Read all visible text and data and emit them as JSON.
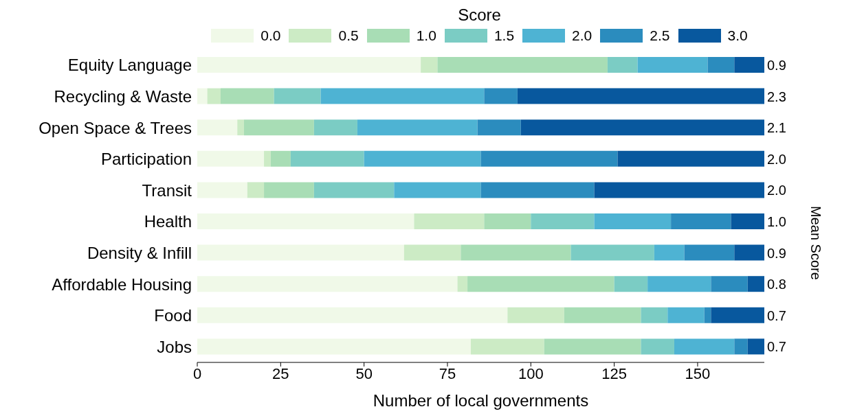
{
  "chart_data": {
    "type": "bar",
    "orientation": "horizontal",
    "stacked": true,
    "xlabel": "Number of local governments",
    "y2label": "Mean Score",
    "legend_title": "Score",
    "legend": "top",
    "categories": [
      "Equity Language",
      "Recycling & Waste",
      "Open Space & Trees",
      "Participation",
      "Transit",
      "Health",
      "Density & Infill",
      "Affordable Housing",
      "Food",
      "Jobs"
    ],
    "series": [
      {
        "name": "0.0",
        "color": "#f0f9e8",
        "values": [
          67,
          3,
          12,
          20,
          15,
          65,
          62,
          78,
          93,
          82
        ]
      },
      {
        "name": "0.5",
        "color": "#ccebc5",
        "values": [
          5,
          4,
          2,
          2,
          5,
          21,
          17,
          3,
          17,
          22
        ]
      },
      {
        "name": "1.0",
        "color": "#a8ddb5",
        "values": [
          51,
          16,
          21,
          6,
          15,
          14,
          33,
          44,
          23,
          29
        ]
      },
      {
        "name": "1.5",
        "color": "#7bccc4",
        "values": [
          9,
          14,
          13,
          22,
          24,
          19,
          25,
          10,
          8,
          10
        ]
      },
      {
        "name": "2.0",
        "color": "#4eb3d3",
        "values": [
          21,
          49,
          36,
          35,
          26,
          23,
          9,
          19,
          11,
          18
        ]
      },
      {
        "name": "2.5",
        "color": "#2b8cbe",
        "values": [
          8,
          10,
          13,
          41,
          34,
          18,
          15,
          11,
          2,
          4
        ]
      },
      {
        "name": "3.0",
        "color": "#08589e",
        "values": [
          9,
          74,
          73,
          44,
          51,
          10,
          9,
          5,
          16,
          5
        ]
      }
    ],
    "annotations": [
      "0.9",
      "2.3",
      "2.1",
      "2.0",
      "2.0",
      "1.0",
      "0.9",
      "0.8",
      "0.7",
      "0.7"
    ],
    "xlim": [
      0,
      170
    ],
    "xticks": [
      0,
      25,
      50,
      75,
      100,
      125,
      150
    ],
    "grid": false
  }
}
